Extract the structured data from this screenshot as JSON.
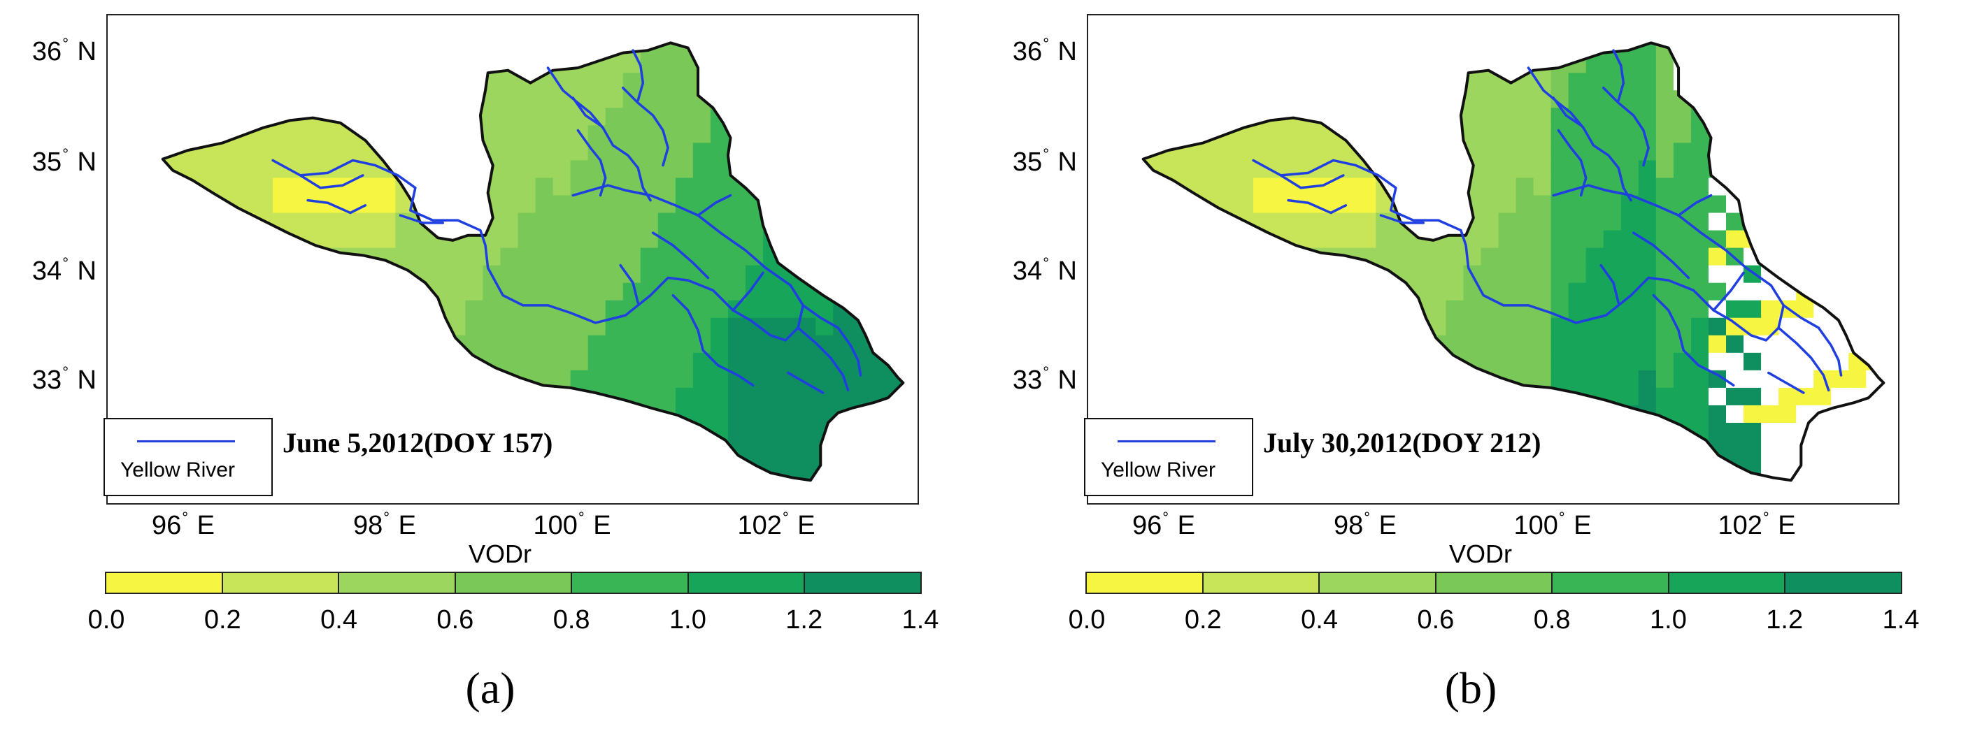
{
  "colors": {
    "scale": [
      "#f5f542",
      "#c8e55a",
      "#9dd65e",
      "#79c858",
      "#3ab556",
      "#17a55a",
      "#0f8f60"
    ],
    "masked": "#ffffff",
    "river": "#1f3fe0",
    "boundary": "#111111"
  },
  "axes": {
    "lat": [
      "36° N",
      "35° N",
      "34° N",
      "33° N"
    ],
    "lon": [
      "96° E",
      "98° E",
      "100° E",
      "102° E"
    ]
  },
  "colorbar": {
    "title": "VODr",
    "ticks": [
      "0.0",
      "0.2",
      "0.4",
      "0.6",
      "0.8",
      "1.0",
      "1.2",
      "1.4"
    ],
    "range": [
      0,
      1.4
    ]
  },
  "legend": {
    "river_label": "Yellow River"
  },
  "panels": [
    {
      "label": "(a)",
      "date_title": "June 5,2012(DOY 157)",
      "masked_region": false
    },
    {
      "label": "(b)",
      "date_title": "July 30,2012(DOY 212)",
      "masked_region": true
    }
  ]
}
